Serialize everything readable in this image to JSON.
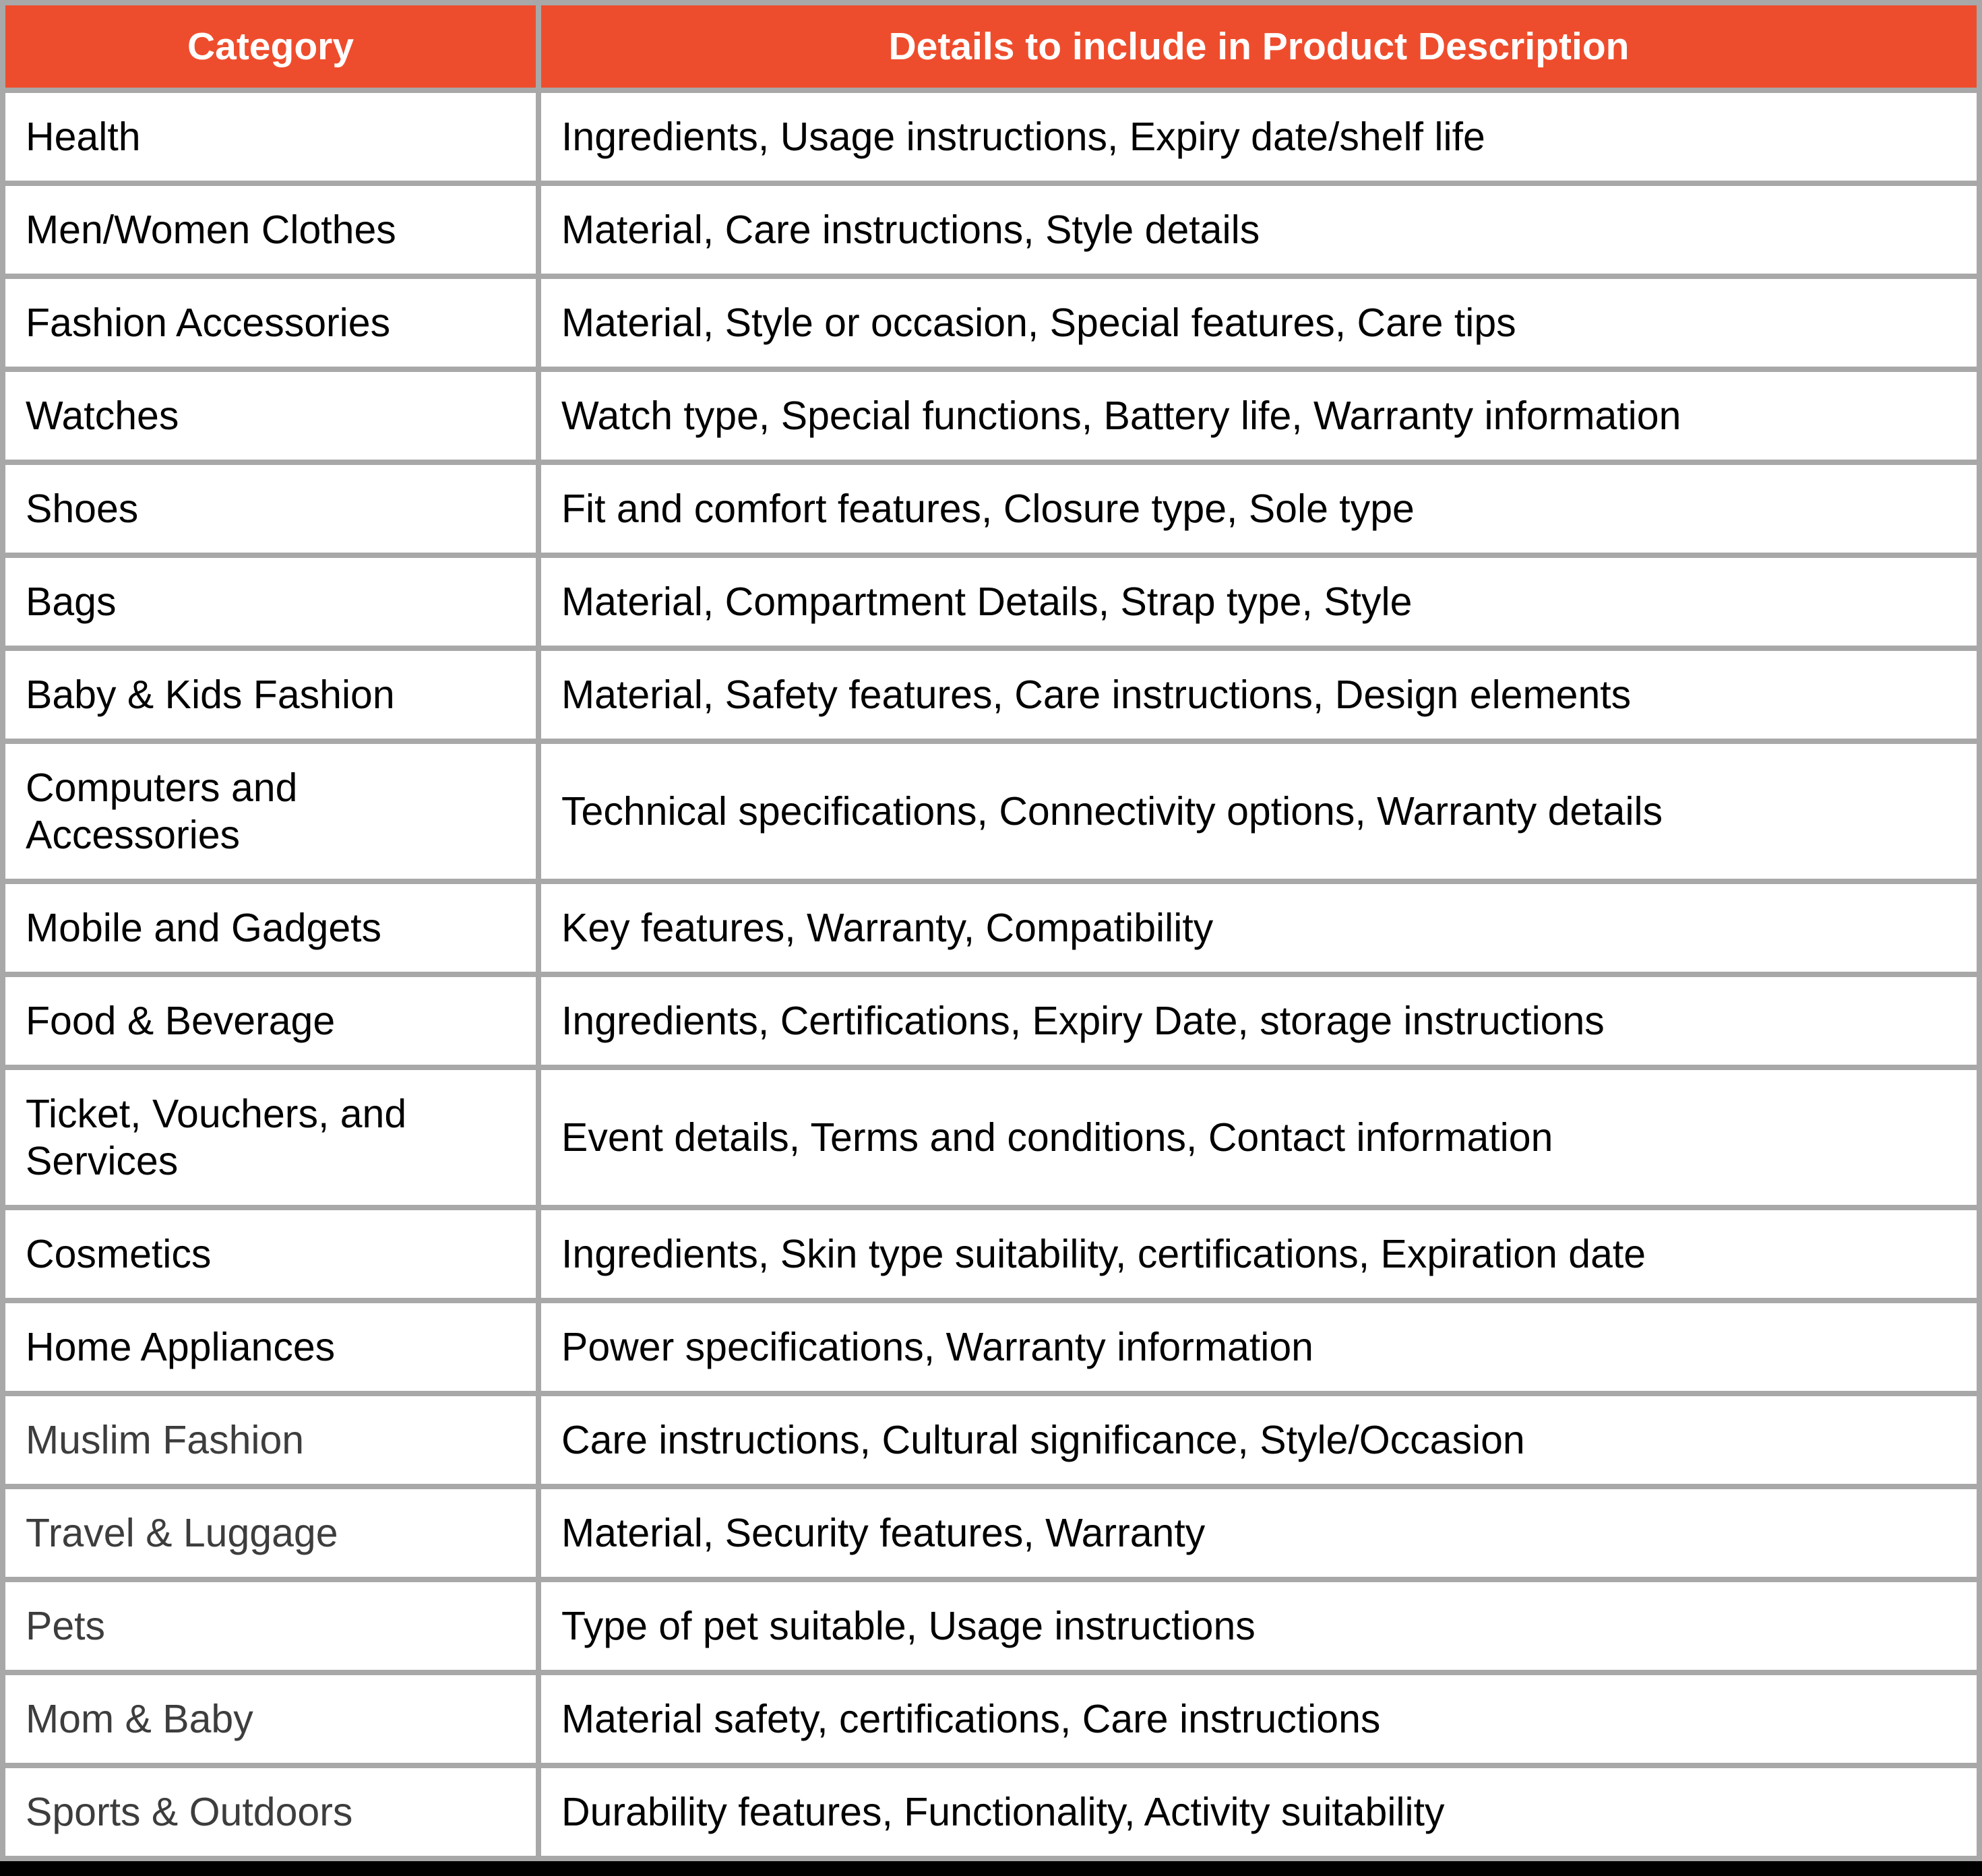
{
  "table": {
    "columns": [
      "Category",
      "Details to include in Product Description"
    ],
    "rows": [
      {
        "category": "Health",
        "details": "Ingredients, Usage instructions, Expiry date/shelf life",
        "muted": false
      },
      {
        "category": "Men/Women Clothes",
        "details": "Material, Care instructions, Style details",
        "muted": false
      },
      {
        "category": "Fashion Accessories",
        "details": "Material, Style or occasion, Special features, Care tips",
        "muted": false
      },
      {
        "category": "Watches",
        "details": "Watch type, Special functions, Battery life, Warranty information",
        "muted": false
      },
      {
        "category": "Shoes",
        "details": "Fit and comfort features, Closure type, Sole type",
        "muted": false
      },
      {
        "category": "Bags",
        "details": "Material, Compartment Details, Strap type, Style",
        "muted": false
      },
      {
        "category": "Baby & Kids Fashion",
        "details": "Material, Safety features, Care instructions, Design elements",
        "muted": false
      },
      {
        "category": "Computers and Accessories",
        "details": "Technical specifications, Connectivity options, Warranty details",
        "muted": false
      },
      {
        "category": "Mobile and Gadgets",
        "details": "Key features, Warranty, Compatibility",
        "muted": false
      },
      {
        "category": "Food & Beverage",
        "details": "Ingredients, Certifications, Expiry Date, storage instructions",
        "muted": false
      },
      {
        "category": "Ticket, Vouchers, and Services",
        "details": "Event details, Terms and conditions, Contact information",
        "muted": false
      },
      {
        "category": "Cosmetics",
        "details": "Ingredients, Skin type suitability, certifications, Expiration date",
        "muted": false
      },
      {
        "category": "Home Appliances",
        "details": "Power specifications, Warranty information",
        "muted": false
      },
      {
        "category": "Muslim Fashion",
        "details": "Care instructions, Cultural significance, Style/Occasion",
        "muted": true
      },
      {
        "category": "Travel & Luggage",
        "details": "Material, Security features, Warranty",
        "muted": true
      },
      {
        "category": "Pets",
        "details": "Type of pet suitable, Usage instructions",
        "muted": true
      },
      {
        "category": "Mom & Baby",
        "details": "Material safety, certifications, Care instructions",
        "muted": true
      },
      {
        "category": "Sports & Outdoors",
        "details": "Durability features, Functionality, Activity suitability",
        "muted": true
      }
    ]
  },
  "colors": {
    "header_bg": "#EE4D2D",
    "header_text": "#FFFFFF",
    "border": "#A8A8A8",
    "text": "#000000",
    "muted_category_text": "#3D3D3D",
    "bottom_bar": "#000000"
  }
}
